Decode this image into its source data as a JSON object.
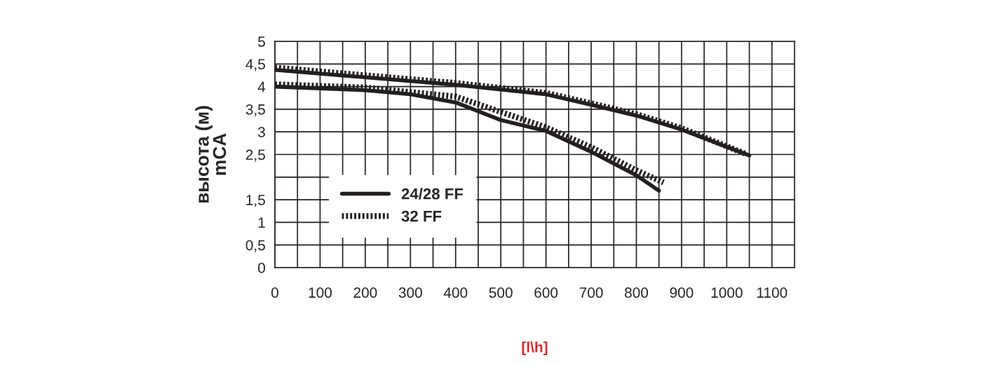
{
  "chart_data": {
    "type": "line",
    "xlabel": "[l\\h]",
    "ylabel": "высота (м)\nmCA",
    "xlim": [
      0,
      1150
    ],
    "ylim": [
      0,
      5
    ],
    "xticks": [
      0,
      {
        "value": 50,
        "label": null
      },
      100,
      {
        "value": 150,
        "label": null
      },
      200,
      {
        "value": 250,
        "label": null
      },
      300,
      {
        "value": 350,
        "label": null
      },
      400,
      {
        "value": 450,
        "label": null
      },
      500,
      {
        "value": 550,
        "label": null
      },
      600,
      {
        "value": 650,
        "label": null
      },
      700,
      {
        "value": 750,
        "label": null
      },
      800,
      {
        "value": 850,
        "label": null
      },
      900,
      {
        "value": 950,
        "label": null
      },
      1000,
      {
        "value": 1050,
        "label": null
      },
      1100
    ],
    "yticks": [
      0,
      {
        "value": 0.5,
        "label": "0,5"
      },
      1,
      {
        "value": 1.5,
        "label": "1,5"
      },
      {
        "value": 2,
        "label": null
      },
      {
        "value": 2.5,
        "label": "2,5"
      },
      3,
      {
        "value": 3.5,
        "label": "3,5"
      },
      4,
      {
        "value": 4.5,
        "label": "4,5"
      },
      5
    ],
    "grid": true,
    "legend": "bottom left",
    "marker": "none",
    "series": [
      {
        "name": "24/28 FF",
        "color": "#231f20",
        "line_style": "solid",
        "x": [
          0,
          200,
          300,
          400,
          500,
          600,
          700,
          800,
          850
        ],
        "values": [
          4.0,
          3.92,
          3.83,
          3.65,
          3.26,
          3.02,
          2.56,
          2.04,
          1.7
        ]
      },
      {
        "name": "32 FF",
        "color": "#231f20",
        "line_style": "dotted",
        "x": [
          0,
          200,
          400,
          500,
          600,
          700,
          800,
          860
        ],
        "values": [
          4.05,
          3.98,
          3.78,
          3.44,
          3.1,
          2.66,
          2.15,
          1.88
        ]
      },
      {
        "color": "#231f20",
        "line_style": "solid",
        "x": [
          0,
          400,
          600,
          700,
          800,
          900,
          1050
        ],
        "values": [
          4.37,
          4.04,
          3.83,
          3.6,
          3.36,
          3.05,
          2.48
        ]
      },
      {
        "color": "#231f20",
        "line_style": "dotted",
        "x": [
          0,
          400,
          600,
          700,
          800,
          900,
          1040
        ],
        "values": [
          4.42,
          4.08,
          3.86,
          3.63,
          3.39,
          3.08,
          2.52
        ]
      }
    ]
  }
}
